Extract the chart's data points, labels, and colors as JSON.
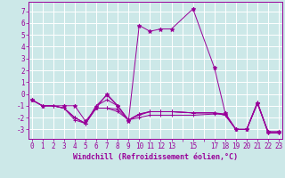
{
  "background_color": "#cce8e8",
  "grid_color": "#ffffff",
  "line_color": "#990099",
  "marker_color": "#990099",
  "xlabel": "Windchill (Refroidissement éolien,°C)",
  "xlabel_fontsize": 6.0,
  "tick_fontsize": 5.5,
  "xtick_labels": [
    "0",
    "1",
    "2",
    "3",
    "4",
    "5",
    "6",
    "7",
    "8",
    "9",
    "10",
    "11",
    "12",
    "13",
    "",
    "15",
    "",
    "17",
    "18",
    "19",
    "20",
    "21",
    "22",
    "23"
  ],
  "xtick_positions": [
    0,
    1,
    2,
    3,
    4,
    5,
    6,
    7,
    8,
    9,
    10,
    11,
    12,
    13,
    14,
    15,
    16,
    17,
    18,
    19,
    20,
    21,
    22,
    23
  ],
  "yticks": [
    -3,
    -2,
    -1,
    0,
    1,
    2,
    3,
    4,
    5,
    6,
    7
  ],
  "ylim": [
    -3.8,
    7.8
  ],
  "xlim": [
    -0.3,
    23.3
  ],
  "series": [
    {
      "x": [
        0,
        1,
        2,
        3,
        4,
        5,
        6,
        7,
        8,
        9,
        10,
        11,
        12,
        13,
        15,
        17,
        18,
        19,
        20,
        21,
        22,
        23
      ],
      "y": [
        -0.5,
        -1.0,
        -1.0,
        -1.2,
        -2.2,
        -2.5,
        -1.2,
        -1.2,
        -1.5,
        -2.2,
        -2.0,
        -1.8,
        -1.8,
        -1.8,
        -1.8,
        -1.7,
        -1.7,
        -3.0,
        -3.0,
        -0.8,
        -3.2,
        -3.2
      ]
    },
    {
      "x": [
        0,
        1,
        2,
        3,
        4,
        5,
        6,
        7,
        8,
        9,
        10,
        11,
        12,
        13,
        15,
        17,
        18,
        19,
        20,
        21,
        22,
        23
      ],
      "y": [
        -0.5,
        -1.0,
        -1.0,
        -1.2,
        -2.0,
        -2.5,
        -1.0,
        -0.1,
        -1.0,
        -2.2,
        -1.8,
        -1.5,
        -1.5,
        -1.5,
        -1.6,
        -1.6,
        -1.7,
        -3.0,
        -3.0,
        -0.8,
        -3.3,
        -3.3
      ]
    },
    {
      "x": [
        0,
        1,
        2,
        3,
        4,
        5,
        6,
        7,
        8,
        9,
        10,
        11,
        12,
        13,
        15,
        17,
        18,
        19,
        20,
        21,
        22,
        23
      ],
      "y": [
        -0.5,
        -1.0,
        -1.0,
        -1.2,
        -2.0,
        -2.5,
        -1.2,
        -1.2,
        -1.3,
        -2.2,
        -1.7,
        -1.5,
        -1.5,
        -1.5,
        -1.6,
        -1.6,
        -1.8,
        -3.0,
        -3.0,
        -0.7,
        -3.3,
        -3.3
      ]
    },
    {
      "x": [
        0,
        1,
        2,
        3,
        4,
        5,
        6,
        7,
        8,
        9,
        10,
        11,
        12,
        13,
        15,
        17,
        18,
        19,
        20,
        21,
        22,
        23
      ],
      "y": [
        -0.5,
        -1.0,
        -1.0,
        -1.2,
        -2.0,
        -2.5,
        -1.0,
        -0.5,
        -1.0,
        -2.2,
        -1.7,
        -1.5,
        -1.5,
        -1.5,
        -1.6,
        -1.6,
        -1.8,
        -3.0,
        -3.0,
        -0.7,
        -3.3,
        -3.3
      ]
    },
    {
      "x": [
        0,
        1,
        3,
        4,
        5,
        6,
        7,
        8,
        9,
        10,
        11,
        12,
        13,
        15,
        17,
        18,
        19,
        20,
        21,
        22,
        23
      ],
      "y": [
        -0.5,
        -1.0,
        -1.0,
        -1.0,
        -2.3,
        -1.2,
        0.0,
        -1.0,
        -2.3,
        5.8,
        5.3,
        5.5,
        5.5,
        7.2,
        2.2,
        -1.6,
        -3.0,
        -3.0,
        -0.8,
        -3.2,
        -3.2
      ]
    }
  ]
}
